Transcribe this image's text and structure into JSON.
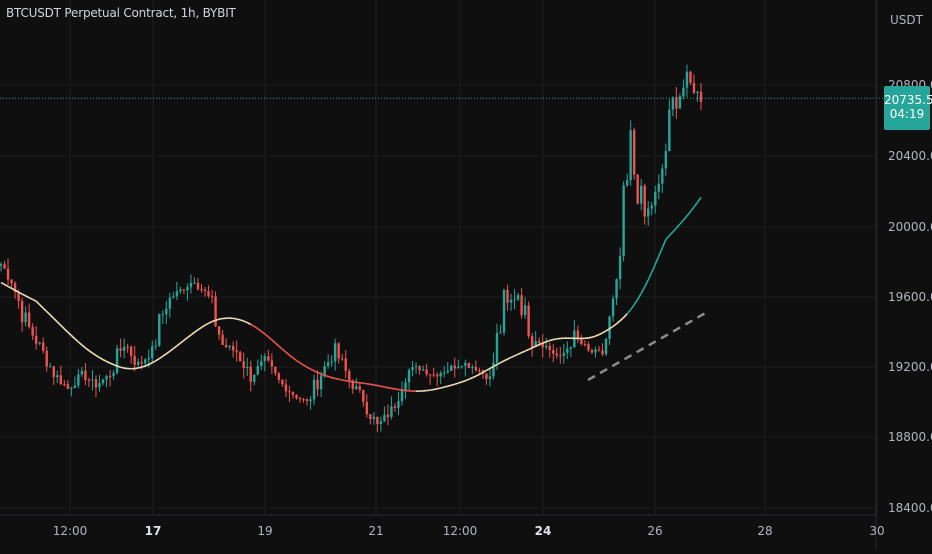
{
  "chart_data": {
    "type": "candlestick",
    "title": "BTCUSDT Perpetual Contract, 1h, BYBIT",
    "currency": "USDT",
    "last_price": "20735.5",
    "countdown": "04:19",
    "y_ticks": [
      "20800.0",
      "20400.0",
      "20000.0",
      "19600.0",
      "19200.0",
      "18800.0",
      "18400.0"
    ],
    "y_range": [
      18400,
      21200
    ],
    "x_ticks": [
      "12:00",
      "17",
      "19",
      "21",
      "12:00",
      "24",
      "26",
      "28",
      "30"
    ],
    "x_ticks_bold": [
      "17",
      "24"
    ],
    "colors": {
      "up": "#26a69a",
      "down": "#ef5350",
      "background": "#0f0f10",
      "moving_average": "#f0deb5",
      "moving_average_down": "#ef5350",
      "moving_average_up": "#26a69a",
      "trend_line": "#8c8c8c"
    },
    "price_path": [
      [
        19820,
        19700
      ],
      [
        19700,
        19460
      ],
      [
        19460,
        19320
      ],
      [
        19320,
        19170
      ],
      [
        19170,
        19080
      ],
      [
        19080,
        19160
      ],
      [
        19160,
        19100
      ],
      [
        19100,
        19160
      ],
      [
        19160,
        19350
      ],
      [
        19350,
        19210
      ],
      [
        19210,
        19300
      ],
      [
        19300,
        19580
      ],
      [
        19580,
        19640
      ],
      [
        19640,
        19700
      ],
      [
        19700,
        19600
      ],
      [
        19600,
        19330
      ],
      [
        19330,
        19290
      ],
      [
        19290,
        19150
      ],
      [
        19150,
        19240
      ],
      [
        19240,
        19120
      ],
      [
        19120,
        19050
      ],
      [
        19050,
        19000
      ],
      [
        19000,
        19170
      ],
      [
        19170,
        19300
      ],
      [
        19300,
        19130
      ],
      [
        19130,
        19020
      ],
      [
        19020,
        18860
      ],
      [
        18860,
        18960
      ],
      [
        18960,
        19180
      ],
      [
        19180,
        19200
      ],
      [
        19200,
        19160
      ],
      [
        19160,
        19190
      ],
      [
        19190,
        19230
      ],
      [
        19230,
        19200
      ],
      [
        19200,
        19140
      ],
      [
        19140,
        19540
      ],
      [
        19540,
        19620
      ],
      [
        19620,
        19380
      ],
      [
        19380,
        19320
      ],
      [
        19320,
        19250
      ],
      [
        19250,
        19380
      ],
      [
        19380,
        19290
      ],
      [
        19290,
        19280
      ],
      [
        19280,
        19620
      ],
      [
        19620,
        20400
      ],
      [
        20400,
        20050
      ],
      [
        20050,
        20220
      ],
      [
        20220,
        20680
      ],
      [
        20680,
        20840
      ],
      [
        20840,
        20736
      ]
    ]
  }
}
